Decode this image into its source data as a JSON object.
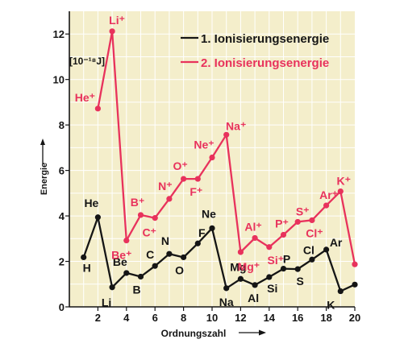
{
  "chart_data": {
    "type": "line",
    "ylabel": "Energie",
    "yunit": "[10⁻¹⁸J]",
    "xlabel": "Ordnungszahl",
    "xlim": [
      0,
      20
    ],
    "ylim": [
      0,
      13
    ],
    "xticks": [
      2,
      4,
      6,
      8,
      10,
      12,
      14,
      16,
      18,
      20
    ],
    "yticks": [
      0,
      2,
      4,
      6,
      8,
      10,
      12
    ],
    "grid": true,
    "legend_position": "top-right",
    "colors": {
      "background": "#f4eecb",
      "grid": "#ffffff",
      "first": "#151515",
      "second": "#e8325c"
    },
    "series": [
      {
        "name": "1. Ionisierungsenergie",
        "color": "#151515",
        "x": [
          1,
          2,
          3,
          4,
          5,
          6,
          7,
          8,
          9,
          10,
          11,
          12,
          13,
          14,
          15,
          16,
          17,
          18,
          19,
          20
        ],
        "y": [
          2.18,
          3.94,
          0.86,
          1.49,
          1.33,
          1.8,
          2.33,
          2.18,
          2.79,
          3.46,
          0.82,
          1.23,
          0.96,
          1.31,
          1.68,
          1.66,
          2.08,
          2.52,
          0.69,
          0.98
        ],
        "labels": [
          "H",
          "He",
          "Li",
          "Be",
          "B",
          "C",
          "N",
          "O",
          "F",
          "Ne",
          "Na",
          "Mg",
          "Al",
          "Si",
          "P",
          "S",
          "Cl",
          "Ar",
          "K",
          ""
        ]
      },
      {
        "name": "2. Ionisierungsenergie",
        "color": "#e8325c",
        "x": [
          2,
          3,
          4,
          5,
          6,
          7,
          8,
          9,
          10,
          11,
          12,
          13,
          14,
          15,
          16,
          17,
          18,
          19,
          20
        ],
        "y": [
          8.72,
          12.12,
          2.92,
          4.04,
          3.91,
          4.75,
          5.63,
          5.63,
          6.57,
          7.57,
          2.41,
          3.03,
          2.63,
          3.17,
          3.74,
          3.81,
          4.46,
          5.08,
          1.87
        ],
        "labels": [
          "He⁺",
          "Li⁺",
          "Be⁺",
          "B⁺",
          "C⁺",
          "N⁺",
          "O⁺",
          "F⁺",
          "Ne⁺",
          "Na⁺",
          "Mg⁺",
          "Al⁺",
          "Si⁺",
          "P⁺",
          "S⁺",
          "Cl⁺",
          "Ar⁺",
          "K⁺",
          ""
        ]
      }
    ]
  }
}
